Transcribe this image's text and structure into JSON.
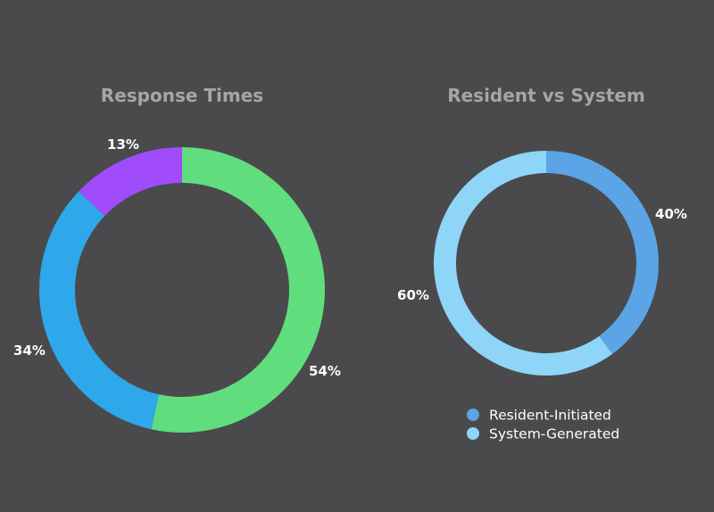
{
  "chart_data": [
    {
      "type": "pie",
      "title": "Response Times",
      "donut": true,
      "slices": [
        {
          "label": "54%",
          "value": 54,
          "color": "#60de7e"
        },
        {
          "label": "34%",
          "value": 34,
          "color": "#2ea8ea"
        },
        {
          "label": "13%",
          "value": 13,
          "color": "#a04cfb"
        }
      ],
      "legend": []
    },
    {
      "type": "pie",
      "title": "Resident vs System",
      "donut": true,
      "slices": [
        {
          "name": "Resident-Initiated",
          "label": "40%",
          "value": 40,
          "color": "#5ba5e6"
        },
        {
          "name": "System-Generated",
          "label": "60%",
          "value": 60,
          "color": "#8ed5f8"
        }
      ],
      "legend": [
        "Resident-Initiated",
        "System-Generated"
      ],
      "legend_position": "bottom"
    }
  ],
  "background_color": "#4a4a4c",
  "title_color": "#a6a6a8"
}
